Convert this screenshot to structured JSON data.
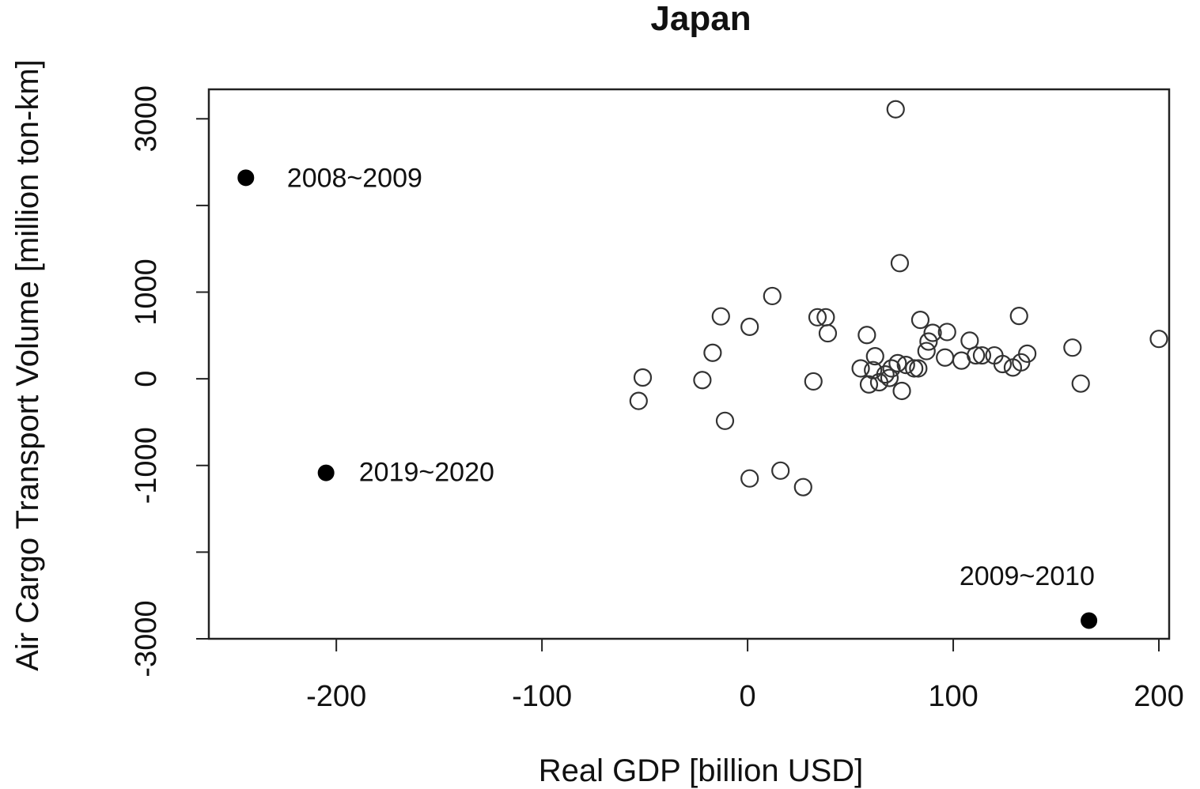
{
  "chart_data": {
    "type": "scatter",
    "title": "Japan",
    "xlabel": "Real GDP [billion USD]",
    "ylabel": "Air Cargo Transport Volume [million ton-km]",
    "xlim": [
      -262,
      205
    ],
    "ylim": [
      -3000,
      3340
    ],
    "xticks": [
      -200,
      -100,
      0,
      100,
      200
    ],
    "xtick_labels": [
      "-200",
      "-100",
      "0",
      "100",
      "200"
    ],
    "yticks": [
      -3000,
      -2000,
      -1000,
      0,
      1000,
      2000,
      3000
    ],
    "ytick_labels": [
      "-3000",
      "",
      "-1000",
      "0",
      "1000",
      "",
      "3000"
    ],
    "grid": false,
    "legend": "none",
    "series": [
      {
        "marker": "open-circle",
        "points": [
          {
            "x": 72,
            "y": 3110
          },
          {
            "x": 74,
            "y": 1335
          },
          {
            "x": 12,
            "y": 955
          },
          {
            "x": -13,
            "y": 720
          },
          {
            "x": 1,
            "y": 600
          },
          {
            "x": 34,
            "y": 710
          },
          {
            "x": 38,
            "y": 710
          },
          {
            "x": 39,
            "y": 525
          },
          {
            "x": 58,
            "y": 505
          },
          {
            "x": 84,
            "y": 680
          },
          {
            "x": 90,
            "y": 530
          },
          {
            "x": 97,
            "y": 540
          },
          {
            "x": 88,
            "y": 430
          },
          {
            "x": 108,
            "y": 440
          },
          {
            "x": 132,
            "y": 725
          },
          {
            "x": 158,
            "y": 360
          },
          {
            "x": 200,
            "y": 460
          },
          {
            "x": -17,
            "y": 300
          },
          {
            "x": -51,
            "y": 15
          },
          {
            "x": -53,
            "y": -255
          },
          {
            "x": -22,
            "y": -15
          },
          {
            "x": -11,
            "y": -485
          },
          {
            "x": 32,
            "y": -30
          },
          {
            "x": 55,
            "y": 120
          },
          {
            "x": 59,
            "y": -65
          },
          {
            "x": 61,
            "y": 100
          },
          {
            "x": 62,
            "y": 260
          },
          {
            "x": 64,
            "y": -40
          },
          {
            "x": 67,
            "y": 50
          },
          {
            "x": 69,
            "y": 10
          },
          {
            "x": 70,
            "y": 120
          },
          {
            "x": 73,
            "y": 180
          },
          {
            "x": 75,
            "y": -140
          },
          {
            "x": 77,
            "y": 160
          },
          {
            "x": 81,
            "y": 120
          },
          {
            "x": 83,
            "y": 120
          },
          {
            "x": 87,
            "y": 320
          },
          {
            "x": 96,
            "y": 245
          },
          {
            "x": 104,
            "y": 210
          },
          {
            "x": 111,
            "y": 270
          },
          {
            "x": 114,
            "y": 270
          },
          {
            "x": 120,
            "y": 270
          },
          {
            "x": 124,
            "y": 170
          },
          {
            "x": 129,
            "y": 130
          },
          {
            "x": 133,
            "y": 190
          },
          {
            "x": 136,
            "y": 290
          },
          {
            "x": 162,
            "y": -55
          },
          {
            "x": 1,
            "y": -1150
          },
          {
            "x": 16,
            "y": -1060
          },
          {
            "x": 27,
            "y": -1250
          }
        ]
      },
      {
        "marker": "filled-circle",
        "points": [
          {
            "x": -244,
            "y": 2320,
            "label": "2008~2009"
          },
          {
            "x": -205,
            "y": -1085,
            "label": "2019~2020"
          },
          {
            "x": 166,
            "y": -2790,
            "label": "2009~2010"
          }
        ]
      }
    ],
    "annotations": [
      {
        "text": "2008~2009",
        "x": -224,
        "y": 2215
      },
      {
        "text": "2019~2020",
        "x": -189,
        "y": -1180
      },
      {
        "text": "2009~2010",
        "x": 103,
        "y": -2380
      }
    ]
  }
}
